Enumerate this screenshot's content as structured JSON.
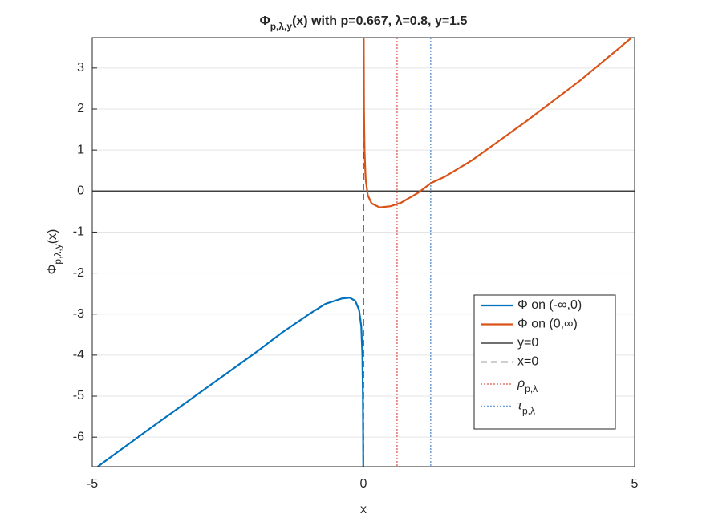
{
  "chart_data": {
    "type": "line",
    "title": "Φ",
    "title_sub": "p,λ,y",
    "title_rest": "(x) with p=0.667, λ=0.8, y=1.5",
    "xlabel": "x",
    "ylabel": "Φ",
    "ylabel_sub": "p,λ,y",
    "ylabel_rest": "(x)",
    "xlim": [
      -5,
      5
    ],
    "ylim": [
      -6.72,
      3.74
    ],
    "xticks": [
      -5,
      0,
      5
    ],
    "yticks": [
      -6,
      -5,
      -4,
      -3,
      -2,
      -1,
      0,
      1,
      2,
      3
    ],
    "grid": true,
    "legend": "lower right",
    "series": [
      {
        "name": "Φ on (-∞,0)",
        "color": "#0072bd",
        "x": [
          -4.9,
          -4,
          -3,
          -2,
          -1.5,
          -1,
          -0.7,
          -0.4,
          -0.25,
          -0.15,
          -0.08,
          -0.04,
          -0.02,
          -0.01,
          -0.003
        ],
        "values": [
          -6.72,
          -5.85,
          -4.9,
          -3.95,
          -3.45,
          -3.0,
          -2.75,
          -2.62,
          -2.6,
          -2.68,
          -2.9,
          -3.3,
          -4.0,
          -5.0,
          -6.72
        ]
      },
      {
        "name": "Φ on (0,∞)",
        "color": "#d95319",
        "x": [
          0.005,
          0.01,
          0.02,
          0.04,
          0.08,
          0.15,
          0.3,
          0.5,
          0.7,
          1,
          1.25,
          1.5,
          2,
          3,
          4,
          5
        ],
        "values": [
          3.74,
          2,
          1,
          0.3,
          -0.1,
          -0.3,
          -0.4,
          -0.37,
          -0.28,
          -0.05,
          0.2,
          0.35,
          0.75,
          1.7,
          2.7,
          3.8
        ]
      }
    ],
    "reference_lines": [
      {
        "name": "y=0",
        "orientation": "horizontal",
        "value": 0,
        "color": "#404040",
        "style": "solid"
      },
      {
        "name": "x=0",
        "orientation": "vertical",
        "value": 0,
        "color": "#404040",
        "style": "dashed"
      },
      {
        "name": "ρ",
        "name_sub": "p,λ",
        "orientation": "vertical",
        "value": 0.62,
        "color": "#e3706b",
        "style": "dotted"
      },
      {
        "name": "τ",
        "name_sub": "p,λ",
        "orientation": "vertical",
        "value": 1.24,
        "color": "#6f9fd8",
        "style": "dotted"
      }
    ]
  }
}
